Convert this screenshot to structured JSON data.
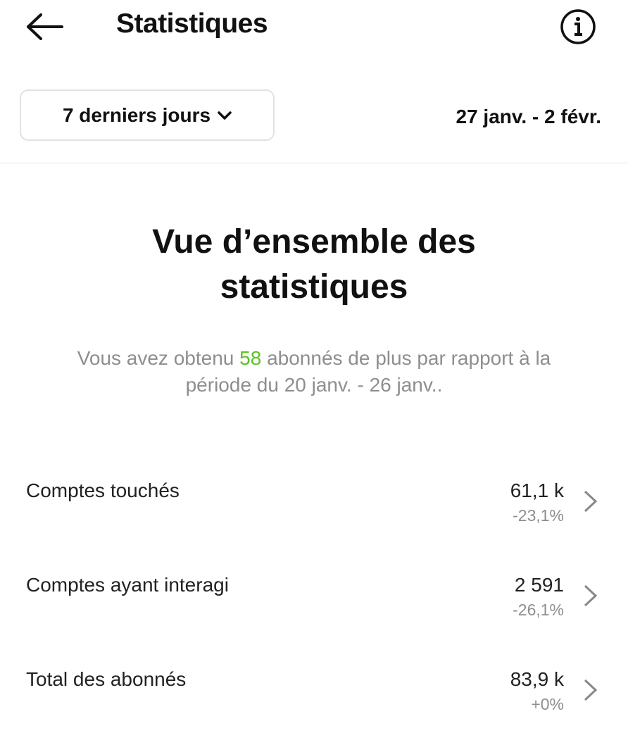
{
  "header": {
    "title": "Statistiques",
    "back_icon": "arrow-left-icon",
    "info_icon": "info-icon"
  },
  "filter": {
    "period_label": "7 derniers jours",
    "date_range": "27 janv. - 2 févr."
  },
  "overview": {
    "heading_line1": "Vue d’ensemble des",
    "heading_line2": "statistiques",
    "summary_prefix": "Vous avez obtenu ",
    "summary_count": "58",
    "summary_suffix": " abonnés de plus par rapport à la période du 20 janv. - 26 janv..",
    "highlight_color": "#58c322"
  },
  "metrics": [
    {
      "label": "Comptes touchés",
      "value": "61,1 k",
      "change": "-23,1%",
      "change_color": "#8e8e8e"
    },
    {
      "label": "Comptes ayant interagi",
      "value": "2 591",
      "change": "-26,1%",
      "change_color": "#8e8e8e"
    },
    {
      "label": "Total des abonnés",
      "value": "83,9 k",
      "change": "+0%",
      "change_color": "#58c322"
    }
  ]
}
